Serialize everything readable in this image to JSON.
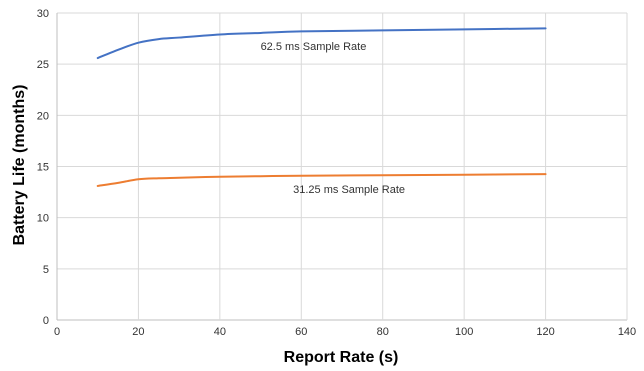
{
  "chart_data": {
    "type": "line",
    "title": "",
    "xlabel": "Report Rate (s)",
    "ylabel": "Battery Life (months)",
    "xlim": [
      0,
      140
    ],
    "ylim": [
      0,
      30
    ],
    "x_ticks": [
      0,
      20,
      40,
      60,
      80,
      100,
      120,
      140
    ],
    "y_ticks": [
      0,
      5,
      10,
      15,
      20,
      25,
      30
    ],
    "grid": true,
    "series": [
      {
        "name": "62.5 ms Sample Rate",
        "color": "#4472C4",
        "x": [
          10,
          15,
          20,
          25,
          30,
          40,
          50,
          60,
          80,
          100,
          120
        ],
        "y": [
          25.6,
          26.4,
          27.1,
          27.45,
          27.6,
          27.9,
          28.05,
          28.2,
          28.3,
          28.4,
          28.5
        ]
      },
      {
        "name": "31.25 ms Sample Rate",
        "color": "#ED7D31",
        "x": [
          10,
          15,
          20,
          25,
          30,
          40,
          50,
          60,
          80,
          100,
          120
        ],
        "y": [
          13.1,
          13.4,
          13.75,
          13.85,
          13.9,
          14.0,
          14.05,
          14.1,
          14.15,
          14.2,
          14.25
        ]
      }
    ]
  }
}
